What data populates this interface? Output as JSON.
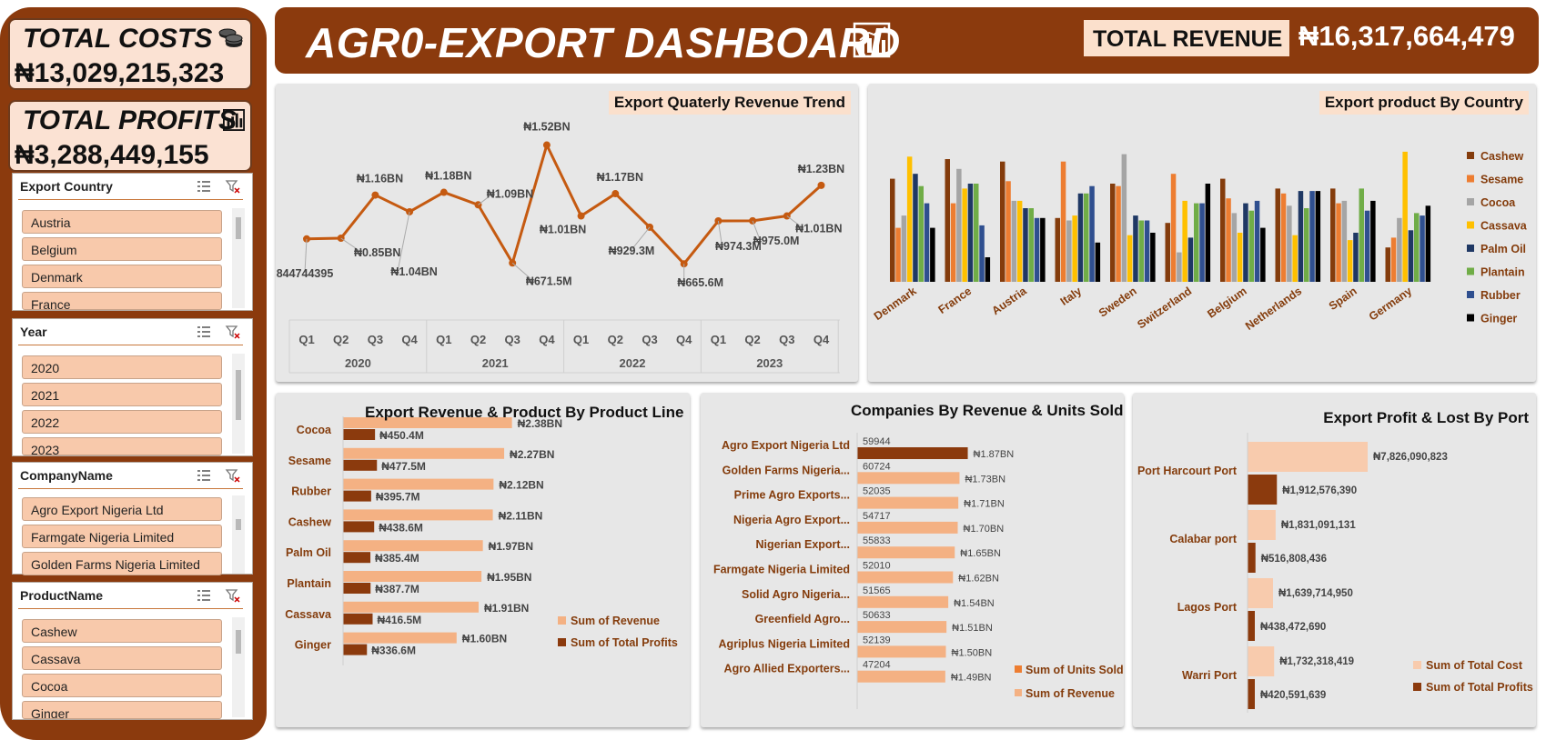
{
  "header": {
    "title": "AGR0-EXPORT DASHBOARD",
    "total_revenue_label": "TOTAL REVENUE",
    "total_revenue_value": "₦16,317,664,479"
  },
  "kpis": {
    "costs_label": "TOTAL COSTS",
    "costs_value": "₦13,029,215,323",
    "profits_label": "TOTAL PROFITS",
    "profits_value": "₦3,288,449,155"
  },
  "slicers": {
    "country": {
      "title": "Export Country",
      "items": [
        "Austria",
        "Belgium",
        "Denmark",
        "France"
      ]
    },
    "year": {
      "title": "Year",
      "items": [
        "2020",
        "2021",
        "2022",
        "2023"
      ]
    },
    "company": {
      "title": "CompanyName",
      "items": [
        "Agro Export Nigeria Ltd",
        "Farmgate Nigeria Limited",
        "Golden Farms Nigeria Limited"
      ]
    },
    "product": {
      "title": "ProductName",
      "items": [
        "Cashew",
        "Cassava",
        "Cocoa",
        "Ginger"
      ]
    }
  },
  "colors": {
    "brown": "#8b3a0d",
    "peach": "#f4b183",
    "line": "#c55a11",
    "panel_bg": "#e7e7e7",
    "series": [
      "#843c0c",
      "#ed7d31",
      "#a5a5a5",
      "#ffc000",
      "#1f3864",
      "#70ad47",
      "#2f4f8f",
      "#000000"
    ]
  },
  "chart_data": [
    {
      "type": "line",
      "title": "Export Quaterly Revenue Trend",
      "categories": [
        "Q1",
        "Q2",
        "Q3",
        "Q4",
        "Q1",
        "Q2",
        "Q3",
        "Q4",
        "Q1",
        "Q2",
        "Q3",
        "Q4",
        "Q1",
        "Q2",
        "Q3",
        "Q4"
      ],
      "groups": [
        "2020",
        "2021",
        "2022",
        "2023"
      ],
      "values": [
        844744395,
        850000000,
        1160000000,
        1040000000,
        1180000000,
        1090000000,
        671500000,
        1520000000,
        1010000000,
        1170000000,
        929300000,
        665600000,
        974300000,
        975000000,
        1010000000,
        1230000000
      ],
      "labels": [
        "844744395",
        "₦0.85BN",
        "₦1.16BN",
        "₦1.04BN",
        "₦1.18BN",
        "₦1.09BN",
        "₦671.5M",
        "₦1.52BN",
        "₦1.01BN",
        "₦1.17BN",
        "₦929.3M",
        "₦665.6M",
        "₦974.3M",
        "₦975.0M",
        "₦1.01BN",
        "₦1.23BN"
      ],
      "ylim": [
        0,
        1700000000
      ]
    },
    {
      "type": "bar",
      "title": "Export product By Country",
      "categories": [
        "Denmark",
        "France",
        "Austria",
        "Italy",
        "Sweden",
        "Switzerland",
        "Belgium",
        "Netherlands",
        "Spain",
        "Germany"
      ],
      "series": [
        {
          "name": "Cashew",
          "values": [
            210,
            250,
            245,
            130,
            200,
            120,
            210,
            190,
            190,
            70
          ]
        },
        {
          "name": "Sesame",
          "values": [
            110,
            160,
            205,
            245,
            195,
            220,
            170,
            180,
            160,
            90
          ]
        },
        {
          "name": "Cocoa",
          "values": [
            135,
            230,
            165,
            125,
            260,
            60,
            140,
            155,
            165,
            130
          ]
        },
        {
          "name": "Cassava",
          "values": [
            255,
            190,
            165,
            135,
            95,
            165,
            100,
            95,
            85,
            265
          ]
        },
        {
          "name": "Palm Oil",
          "values": [
            220,
            200,
            150,
            180,
            135,
            90,
            160,
            185,
            100,
            105
          ]
        },
        {
          "name": "Plantain",
          "values": [
            195,
            200,
            150,
            180,
            125,
            160,
            145,
            150,
            190,
            140
          ]
        },
        {
          "name": "Rubber",
          "values": [
            160,
            115,
            130,
            195,
            125,
            160,
            165,
            185,
            145,
            135
          ]
        },
        {
          "name": "Ginger",
          "values": [
            110,
            50,
            130,
            80,
            100,
            200,
            110,
            185,
            165,
            155
          ]
        }
      ],
      "legend": "right"
    },
    {
      "type": "bar",
      "orientation": "horizontal",
      "title": "Export Revenue  & Product By Product Line",
      "categories": [
        "Cocoa",
        "Sesame",
        "Rubber",
        "Cashew",
        "Palm Oil",
        "Plantain",
        "Cassava",
        "Ginger"
      ],
      "series": [
        {
          "name": "Sum of Revenue",
          "values": [
            2.38,
            2.27,
            2.12,
            2.11,
            1.97,
            1.95,
            1.91,
            1.6
          ],
          "labels": [
            "₦2.38BN",
            "₦2.27BN",
            "₦2.12BN",
            "₦2.11BN",
            "₦1.97BN",
            "₦1.95BN",
            "₦1.91BN",
            "₦1.60BN"
          ]
        },
        {
          "name": "Sum of Total Profits",
          "values": [
            0.4504,
            0.4775,
            0.3957,
            0.4386,
            0.3854,
            0.3877,
            0.4165,
            0.3366
          ],
          "labels": [
            "₦450.4M",
            "₦477.5M",
            "₦395.7M",
            "₦438.6M",
            "₦385.4M",
            "₦387.7M",
            "₦416.5M",
            "₦336.6M"
          ]
        }
      ],
      "legend": "bottom-right"
    },
    {
      "type": "bar",
      "orientation": "horizontal",
      "title": "Companies By Revenue & Units Sold",
      "categories": [
        "Agro Export Nigeria Ltd",
        "Golden Farms Nigeria...",
        "Prime Agro Exports...",
        "Nigeria Agro Export...",
        "Nigerian Export...",
        "Farmgate Nigeria Limited",
        "Solid Agro Nigeria...",
        "Greenfield Agro...",
        "Agriplus Nigeria Limited",
        "Agro Allied Exporters..."
      ],
      "series": [
        {
          "name": "Sum of Units Sold",
          "values": [
            59944,
            60724,
            52035,
            54717,
            55833,
            52010,
            51565,
            50633,
            52139,
            47204
          ]
        },
        {
          "name": "Sum of Revenue",
          "values": [
            1.87,
            1.73,
            1.71,
            1.7,
            1.65,
            1.62,
            1.54,
            1.51,
            1.5,
            1.49
          ],
          "labels": [
            "₦1.87BN",
            "₦1.73BN",
            "₦1.71BN",
            "₦1.70BN",
            "₦1.65BN",
            "₦1.62BN",
            "₦1.54BN",
            "₦1.51BN",
            "₦1.50BN",
            "₦1.49BN"
          ]
        }
      ],
      "legend": "bottom-right"
    },
    {
      "type": "bar",
      "orientation": "horizontal",
      "title": "Export Profit & Lost By Port",
      "categories": [
        "Port Harcourt Port",
        "Calabar port",
        "Lagos Port",
        "Warri Port"
      ],
      "series": [
        {
          "name": "Sum of Total Cost",
          "values": [
            7826090823,
            1831091131,
            1639714950,
            1732318419
          ],
          "labels": [
            "₦7,826,090,823",
            "₦1,831,091,131",
            "₦1,639,714,950",
            "₦1,732,318,419"
          ]
        },
        {
          "name": "Sum of Total Profits",
          "values": [
            1912576390,
            516808436,
            438472690,
            420591639
          ],
          "labels": [
            "₦1,912,576,390",
            "₦516,808,436",
            "₦438,472,690",
            "₦420,591,639"
          ]
        }
      ],
      "legend": "bottom-right"
    }
  ]
}
